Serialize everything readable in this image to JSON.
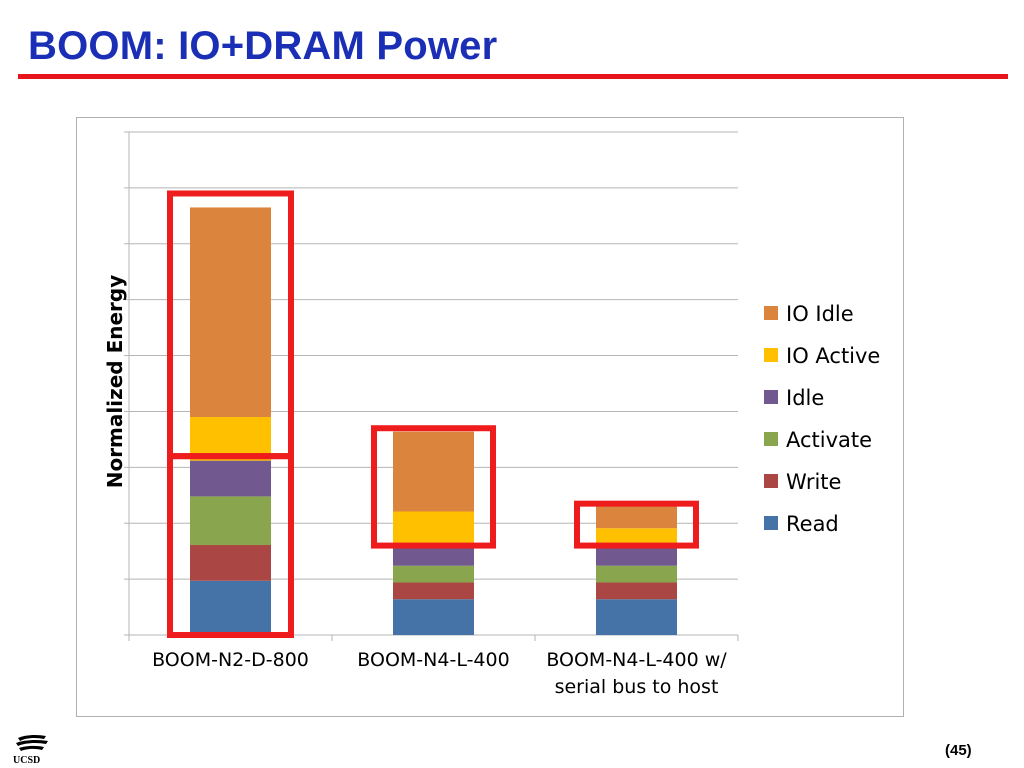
{
  "slide": {
    "title": "BOOM: IO+DRAM Power",
    "page_number": "(45)",
    "logo_text": "UCSD"
  },
  "colors": {
    "title": "#1a2fb5",
    "rule": "#e8141b",
    "highlight_box": "#ee1c1c"
  },
  "chart_data": {
    "type": "bar",
    "stacked": true,
    "title": "",
    "xlabel": "",
    "ylabel": "Normalized Energy",
    "ylim": [
      0,
      9
    ],
    "y_tick_labels_shown": false,
    "grid": true,
    "legend_position": "right",
    "categories": [
      [
        "BOOM-N2-D-800"
      ],
      [
        "BOOM-N4-L-400"
      ],
      [
        "BOOM-N4-L-400 w/",
        "serial bus to host"
      ]
    ],
    "series": [
      {
        "name": "Read",
        "color": "#4573a7",
        "values": [
          0.97,
          0.64,
          0.64
        ]
      },
      {
        "name": "Write",
        "color": "#aa4643",
        "values": [
          0.64,
          0.3,
          0.3
        ]
      },
      {
        "name": "Activate",
        "color": "#89a54e",
        "values": [
          0.87,
          0.3,
          0.3
        ]
      },
      {
        "name": "Idle",
        "color": "#71588f",
        "values": [
          0.64,
          0.37,
          0.37
        ]
      },
      {
        "name": "IO Active",
        "color": "#ffc000",
        "values": [
          0.78,
          0.6,
          0.3
        ]
      },
      {
        "name": "IO Idle",
        "color": "#db843d",
        "values": [
          3.75,
          1.43,
          0.39
        ]
      }
    ],
    "legend_order": [
      "IO Idle",
      "IO Active",
      "Idle",
      "Activate",
      "Write",
      "Read"
    ],
    "highlights": [
      {
        "category": 0,
        "from": 0,
        "to": 3.2
      },
      {
        "category": 0,
        "from": 3.2,
        "to": 7.9
      },
      {
        "category": 1,
        "from": 1.6,
        "to": 3.7
      },
      {
        "category": 2,
        "from": 1.6,
        "to": 2.35
      }
    ]
  }
}
